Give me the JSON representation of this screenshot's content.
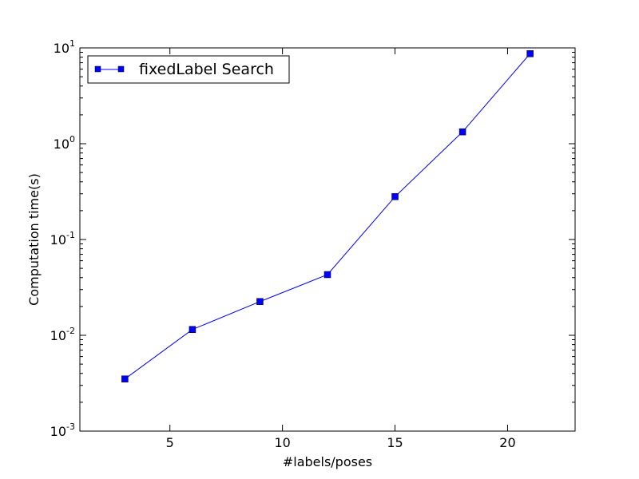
{
  "chart_data": {
    "type": "line",
    "xlabel": "#labels/poses",
    "ylabel": "Computation time(s)",
    "xlim": [
      1,
      23
    ],
    "ylim": [
      0.001,
      10
    ],
    "yscale": "log",
    "xticks": [
      5,
      10,
      15,
      20
    ],
    "yticks": [
      {
        "value": 0.001,
        "base": "10",
        "exp": "-3"
      },
      {
        "value": 0.01,
        "base": "10",
        "exp": "-2"
      },
      {
        "value": 0.1,
        "base": "10",
        "exp": "-1"
      },
      {
        "value": 1,
        "base": "10",
        "exp": "0"
      },
      {
        "value": 10,
        "base": "10",
        "exp": "1"
      }
    ],
    "grid": false,
    "legend_position": "top-left",
    "series": [
      {
        "name": "fixedLabel Search",
        "color": "#0000ff",
        "marker": "square",
        "x": [
          3,
          6,
          9,
          12,
          15,
          18,
          21
        ],
        "y": [
          0.0035,
          0.0115,
          0.0225,
          0.043,
          0.28,
          1.33,
          8.7
        ]
      }
    ]
  }
}
